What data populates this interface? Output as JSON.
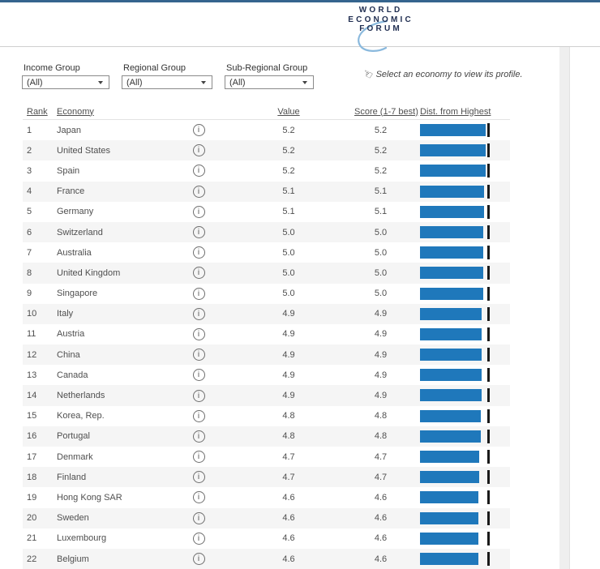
{
  "header": {
    "logo_lines": [
      "WORLD",
      "ECONOMIC",
      "FORUM"
    ]
  },
  "filters": [
    {
      "label": "Income Group",
      "value": "(All)"
    },
    {
      "label": "Regional Group",
      "value": "(All)"
    },
    {
      "label": "Sub-Regional Group",
      "value": "(All)"
    }
  ],
  "hint": {
    "icon_glyph": "☜",
    "text": "Select an economy to view its profile."
  },
  "table": {
    "columns": {
      "rank": "Rank",
      "economy": "Economy",
      "value": "Value",
      "score": "Score (1-7 best)",
      "dist": "Dist. from Highest"
    },
    "info_icon_glyph": "i",
    "max_score": 5.2,
    "rows": [
      {
        "rank": "1",
        "economy": "Japan",
        "value": "5.2",
        "score": "5.2"
      },
      {
        "rank": "2",
        "economy": "United States",
        "value": "5.2",
        "score": "5.2"
      },
      {
        "rank": "3",
        "economy": "Spain",
        "value": "5.2",
        "score": "5.2"
      },
      {
        "rank": "4",
        "economy": "France",
        "value": "5.1",
        "score": "5.1"
      },
      {
        "rank": "5",
        "economy": "Germany",
        "value": "5.1",
        "score": "5.1"
      },
      {
        "rank": "6",
        "economy": "Switzerland",
        "value": "5.0",
        "score": "5.0"
      },
      {
        "rank": "7",
        "economy": "Australia",
        "value": "5.0",
        "score": "5.0"
      },
      {
        "rank": "8",
        "economy": "United Kingdom",
        "value": "5.0",
        "score": "5.0"
      },
      {
        "rank": "9",
        "economy": "Singapore",
        "value": "5.0",
        "score": "5.0"
      },
      {
        "rank": "10",
        "economy": "Italy",
        "value": "4.9",
        "score": "4.9"
      },
      {
        "rank": "11",
        "economy": "Austria",
        "value": "4.9",
        "score": "4.9"
      },
      {
        "rank": "12",
        "economy": "China",
        "value": "4.9",
        "score": "4.9"
      },
      {
        "rank": "13",
        "economy": "Canada",
        "value": "4.9",
        "score": "4.9"
      },
      {
        "rank": "14",
        "economy": "Netherlands",
        "value": "4.9",
        "score": "4.9"
      },
      {
        "rank": "15",
        "economy": "Korea, Rep.",
        "value": "4.8",
        "score": "4.8"
      },
      {
        "rank": "16",
        "economy": "Portugal",
        "value": "4.8",
        "score": "4.8"
      },
      {
        "rank": "17",
        "economy": "Denmark",
        "value": "4.7",
        "score": "4.7"
      },
      {
        "rank": "18",
        "economy": "Finland",
        "value": "4.7",
        "score": "4.7"
      },
      {
        "rank": "19",
        "economy": "Hong Kong SAR",
        "value": "4.6",
        "score": "4.6"
      },
      {
        "rank": "20",
        "economy": "Sweden",
        "value": "4.6",
        "score": "4.6"
      },
      {
        "rank": "21",
        "economy": "Luxembourg",
        "value": "4.6",
        "score": "4.6"
      },
      {
        "rank": "22",
        "economy": "Belgium",
        "value": "4.6",
        "score": "4.6"
      }
    ]
  },
  "chart_data": {
    "type": "bar",
    "title": "Dist. from Highest",
    "categories": [
      "Japan",
      "United States",
      "Spain",
      "France",
      "Germany",
      "Switzerland",
      "Australia",
      "United Kingdom",
      "Singapore",
      "Italy",
      "Austria",
      "China",
      "Canada",
      "Netherlands",
      "Korea, Rep.",
      "Portugal",
      "Denmark",
      "Finland",
      "Hong Kong SAR",
      "Sweden",
      "Luxembourg",
      "Belgium"
    ],
    "values": [
      5.2,
      5.2,
      5.2,
      5.1,
      5.1,
      5.0,
      5.0,
      5.0,
      5.0,
      4.9,
      4.9,
      4.9,
      4.9,
      4.9,
      4.8,
      4.8,
      4.7,
      4.7,
      4.6,
      4.6,
      4.6,
      4.6
    ],
    "xlabel": "",
    "ylabel": "Score (1-7 best)",
    "xlim": [
      0,
      5.2
    ],
    "reference_line": 5.2,
    "legend": false,
    "grid": false
  },
  "colors": {
    "top_stripe": "#35648e",
    "bar": "#1f78bb",
    "tick": "#1a1a1a",
    "row_alt": "#f5f5f5",
    "logo_navy": "#1f2d50",
    "logo_arc": "#8ab9dd",
    "scrollbar_track": "#efefef"
  }
}
